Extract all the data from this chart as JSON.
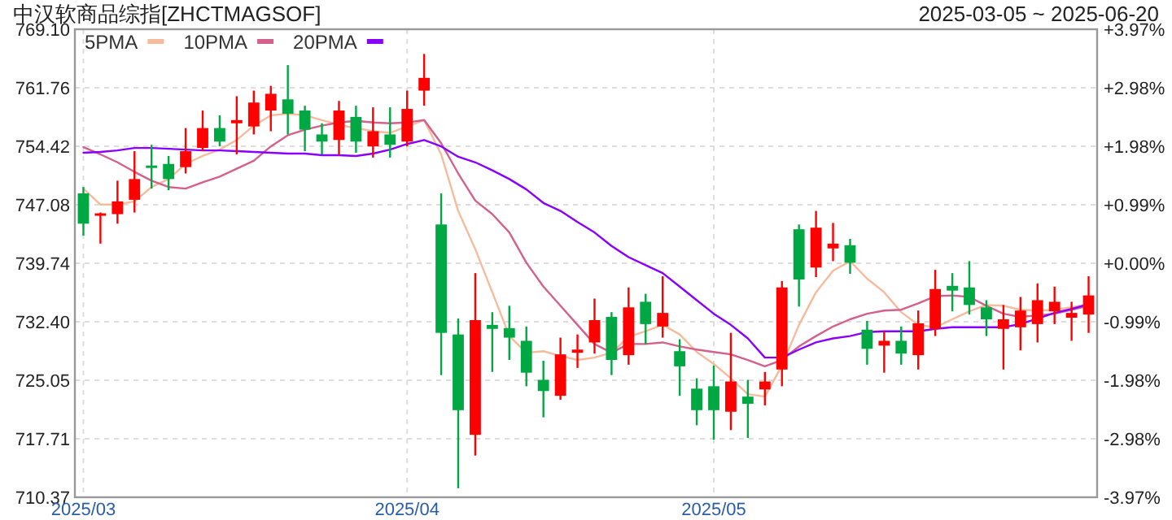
{
  "chart_data": {
    "type": "candlestick",
    "title": "中汉软商品综指[ZHCTMAGSOF]",
    "subtitle": "2025-03-05 ~ 2025-06-20",
    "categories": [
      "2025/03",
      null,
      null,
      null,
      null,
      null,
      null,
      null,
      null,
      null,
      null,
      null,
      null,
      null,
      null,
      null,
      null,
      null,
      null,
      "2025/04",
      null,
      null,
      null,
      null,
      null,
      null,
      null,
      null,
      null,
      null,
      null,
      null,
      null,
      null,
      null,
      null,
      null,
      "2025/05",
      null,
      null,
      null,
      null,
      null,
      null,
      null,
      null,
      null,
      null,
      null,
      null,
      null,
      null,
      null,
      null,
      null,
      null,
      null,
      null,
      null,
      null
    ],
    "ohlc": [
      [
        748.5,
        749.3,
        743.2,
        744.7
      ],
      [
        745.8,
        746.1,
        742.2,
        746.0
      ],
      [
        745.9,
        750.1,
        744.7,
        747.5
      ],
      [
        747.7,
        753.8,
        746.1,
        750.3
      ],
      [
        752.0,
        754.6,
        749.1,
        751.8
      ],
      [
        752.2,
        753.2,
        748.9,
        750.3
      ],
      [
        751.8,
        756.7,
        751.0,
        753.8
      ],
      [
        754.2,
        758.9,
        753.8,
        756.7
      ],
      [
        756.7,
        758.3,
        754.4,
        755.0
      ],
      [
        757.3,
        760.7,
        753.4,
        757.7
      ],
      [
        756.9,
        761.4,
        755.9,
        759.9
      ],
      [
        758.9,
        762.0,
        756.3,
        761.0
      ],
      [
        760.3,
        764.6,
        755.9,
        758.5
      ],
      [
        758.9,
        759.5,
        753.8,
        756.5
      ],
      [
        755.9,
        757.3,
        753.4,
        755.0
      ],
      [
        755.2,
        760.1,
        753.3,
        758.9
      ],
      [
        758.1,
        759.5,
        753.6,
        755.0
      ],
      [
        754.4,
        759.3,
        753.0,
        756.3
      ],
      [
        755.9,
        759.3,
        753.0,
        754.6
      ],
      [
        755.0,
        761.4,
        754.4,
        759.1
      ],
      [
        761.4,
        766.0,
        759.5,
        763.0
      ],
      [
        744.6,
        748.5,
        725.7,
        731.0
      ],
      [
        730.8,
        732.8,
        711.5,
        721.3
      ],
      [
        718.2,
        738.5,
        715.6,
        732.6
      ],
      [
        732.0,
        733.6,
        726.1,
        731.5
      ],
      [
        731.6,
        734.4,
        727.6,
        730.4
      ],
      [
        730.0,
        731.8,
        724.3,
        726.0
      ],
      [
        725.1,
        727.5,
        720.4,
        723.7
      ],
      [
        723.1,
        730.4,
        722.6,
        728.3
      ],
      [
        728.5,
        730.8,
        726.6,
        728.9
      ],
      [
        729.8,
        735.3,
        728.4,
        732.6
      ],
      [
        733.0,
        733.6,
        725.7,
        727.6
      ],
      [
        728.2,
        736.7,
        727.0,
        734.2
      ],
      [
        734.9,
        735.9,
        729.6,
        732.1
      ],
      [
        731.8,
        738.1,
        730.4,
        733.5
      ],
      [
        728.7,
        730.2,
        723.1,
        726.8
      ],
      [
        724.0,
        725.3,
        719.4,
        721.3
      ],
      [
        724.3,
        726.9,
        717.6,
        721.3
      ],
      [
        721.1,
        731.0,
        718.8,
        724.9
      ],
      [
        723.0,
        725.1,
        717.8,
        722.1
      ],
      [
        723.9,
        726.1,
        721.9,
        724.9
      ],
      [
        726.4,
        737.5,
        724.3,
        736.7
      ],
      [
        744.0,
        744.6,
        734.3,
        737.7
      ],
      [
        739.2,
        746.3,
        738.0,
        744.2
      ],
      [
        741.6,
        744.8,
        740.0,
        742.2
      ],
      [
        742.0,
        742.8,
        738.4,
        739.8
      ],
      [
        731.4,
        732.5,
        727.0,
        729.0
      ],
      [
        729.4,
        731.2,
        726.0,
        730.0
      ],
      [
        730.0,
        731.8,
        727.0,
        728.4
      ],
      [
        728.2,
        733.8,
        726.4,
        732.2
      ],
      [
        731.5,
        738.9,
        730.6,
        736.5
      ],
      [
        736.9,
        738.5,
        733.7,
        736.3
      ],
      [
        736.7,
        740.0,
        733.3,
        734.5
      ],
      [
        734.2,
        735.1,
        730.6,
        732.7
      ],
      [
        731.5,
        734.5,
        726.4,
        732.7
      ],
      [
        731.7,
        735.5,
        728.8,
        733.8
      ],
      [
        732.1,
        737.2,
        729.8,
        735.1
      ],
      [
        733.7,
        736.8,
        732.1,
        734.9
      ],
      [
        732.9,
        734.9,
        730.0,
        733.5
      ],
      [
        733.3,
        738.1,
        731.0,
        735.7
      ]
    ],
    "colors": [
      "#00a844",
      "#ff0000",
      "#ff0000",
      "#ff0000",
      "#00a844",
      "#00a844",
      "#ff0000",
      "#ff0000",
      "#00a844",
      "#ff0000",
      "#ff0000",
      "#ff0000",
      "#00a844",
      "#00a844",
      "#00a844",
      "#ff0000",
      "#00a844",
      "#ff0000",
      "#00a844",
      "#ff0000",
      "#ff0000",
      "#00a844",
      "#00a844",
      "#ff0000",
      "#00a844",
      "#00a844",
      "#00a844",
      "#00a844",
      "#ff0000",
      "#ff0000",
      "#ff0000",
      "#00a844",
      "#ff0000",
      "#00a844",
      "#ff0000",
      "#00a844",
      "#00a844",
      "#00a844",
      "#ff0000",
      "#00a844",
      "#ff0000",
      "#ff0000",
      "#00a844",
      "#ff0000",
      "#ff0000",
      "#00a844",
      "#00a844",
      "#ff0000",
      "#00a844",
      "#ff0000",
      "#ff0000",
      "#00a844",
      "#00a844",
      "#00a844",
      "#ff0000",
      "#ff0000",
      "#ff0000",
      "#ff0000",
      "#ff0000",
      "#ff0000"
    ],
    "series": [
      {
        "name": "5PMA",
        "type": "line",
        "color": "#f5bb9c",
        "values": [
          749.1,
          747.1,
          747.1,
          747.5,
          749.3,
          750.3,
          752.2,
          753.2,
          754.0,
          755.2,
          757.0,
          758.3,
          758.5,
          758.3,
          757.7,
          757.1,
          756.7,
          756.3,
          756.1,
          756.9,
          757.7,
          753.4,
          746.3,
          741.5,
          736.1,
          730.6,
          728.5,
          728.7,
          728.1,
          727.6,
          727.9,
          728.5,
          730.5,
          731.2,
          732.0,
          730.8,
          728.6,
          727.1,
          725.3,
          723.3,
          723.0,
          726.9,
          732.0,
          736.1,
          738.8,
          740.0,
          737.8,
          736.1,
          733.6,
          732.0,
          731.7,
          732.7,
          733.7,
          734.5,
          734.4,
          733.9,
          733.8,
          733.9,
          734.2,
          734.6
        ]
      },
      {
        "name": "10PMA",
        "type": "line",
        "color": "#d4608c",
        "values": [
          754.3,
          753.4,
          752.4,
          751.2,
          750.1,
          749.3,
          749.1,
          749.9,
          750.6,
          751.6,
          752.6,
          754.4,
          755.8,
          756.5,
          757.0,
          757.4,
          757.6,
          757.4,
          757.3,
          757.4,
          757.7,
          754.8,
          751.0,
          747.6,
          745.9,
          743.6,
          739.8,
          736.8,
          734.4,
          732.0,
          729.6,
          728.5,
          729.6,
          729.6,
          729.8,
          729.3,
          728.9,
          728.6,
          728.3,
          727.6,
          726.8,
          727.6,
          729.3,
          730.6,
          731.8,
          732.7,
          733.4,
          733.8,
          733.9,
          734.7,
          735.6,
          735.7,
          735.5,
          734.4,
          733.4,
          733.0,
          733.2,
          733.4,
          733.9,
          734.4
        ]
      },
      {
        "name": "20PMA",
        "type": "line",
        "color": "#8a00ff",
        "values": [
          753.6,
          753.7,
          753.9,
          754.2,
          754.2,
          754.1,
          754.0,
          753.9,
          753.9,
          753.8,
          753.7,
          753.6,
          753.5,
          753.5,
          753.3,
          753.3,
          753.2,
          753.5,
          754.0,
          754.7,
          755.2,
          754.4,
          753.1,
          752.4,
          751.4,
          750.3,
          749.0,
          747.3,
          746.3,
          744.9,
          743.6,
          741.9,
          740.5,
          739.5,
          738.5,
          736.8,
          735.1,
          733.4,
          732.0,
          730.3,
          727.9,
          727.9,
          728.9,
          729.8,
          730.3,
          730.6,
          731.1,
          731.2,
          731.2,
          731.2,
          731.5,
          731.7,
          731.7,
          731.7,
          731.7,
          732.1,
          732.8,
          733.5,
          734.0,
          734.6
        ]
      }
    ],
    "ylim": [
      710.37,
      769.1
    ],
    "yticks": [
      710.37,
      717.71,
      725.05,
      {
        "value": 732.4,
        "label": "732.40"
      },
      739.74,
      747.08,
      754.42,
      761.76,
      {
        "value": 769.1,
        "label": "769.10"
      }
    ],
    "y2lim": [
      -3.97,
      3.97
    ],
    "y2ticks": [
      {
        "value": -3.97,
        "label": "-3.97%"
      },
      {
        "value": -2.98,
        "label": "-2.98%"
      },
      {
        "value": -1.98,
        "label": "-1.98%"
      },
      {
        "value": -0.99,
        "label": "-0.99%"
      },
      {
        "value": 0,
        "label": "+0.00%"
      },
      {
        "value": 0.99,
        "label": "+0.99%"
      },
      {
        "value": 1.98,
        "label": "+1.98%"
      },
      {
        "value": 2.98,
        "label": "+2.98%"
      },
      {
        "value": 3.97,
        "label": "+3.97%"
      }
    ],
    "grid": true,
    "legend": "top left"
  }
}
